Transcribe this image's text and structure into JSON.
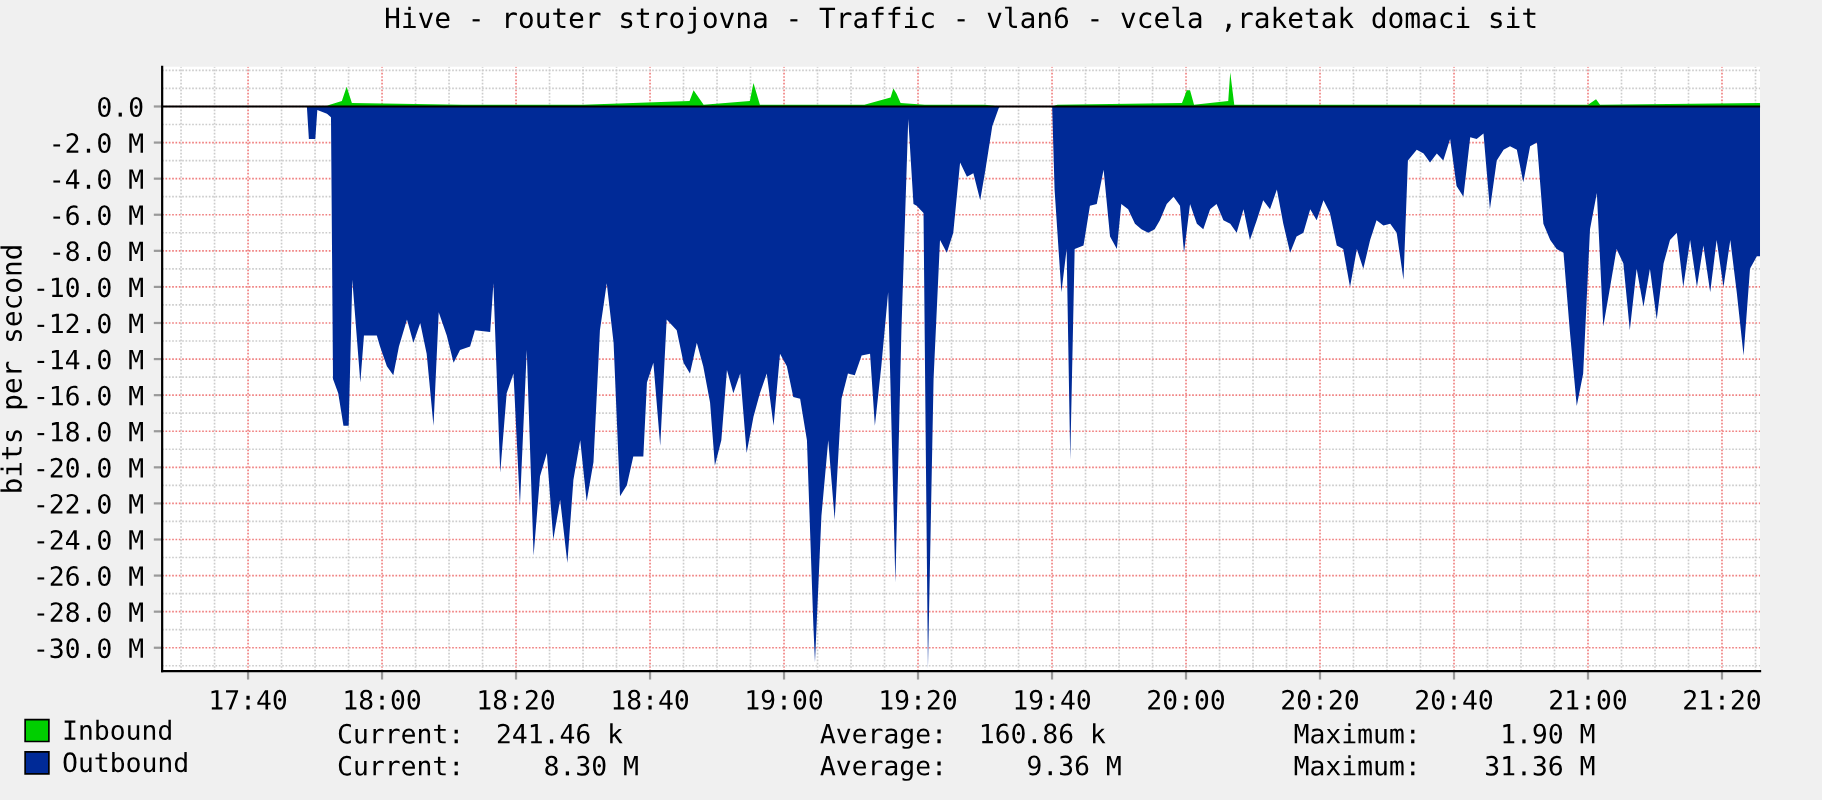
{
  "chart_data": {
    "type": "area",
    "title": "Hive - router strojovna - Traffic - vlan6 - vcela ,raketak domaci sit",
    "ylabel": "bits per second",
    "xlim": [
      17.453,
      21.428
    ],
    "xticks": [
      {
        "value": 17.6667,
        "label": "17:40"
      },
      {
        "value": 18.0,
        "label": "18:00"
      },
      {
        "value": 18.3333,
        "label": "18:20"
      },
      {
        "value": 18.6667,
        "label": "18:40"
      },
      {
        "value": 19.0,
        "label": "19:00"
      },
      {
        "value": 19.3333,
        "label": "19:20"
      },
      {
        "value": 19.6667,
        "label": "19:40"
      },
      {
        "value": 20.0,
        "label": "20:00"
      },
      {
        "value": 20.3333,
        "label": "20:20"
      },
      {
        "value": 20.6667,
        "label": "20:40"
      },
      {
        "value": 21.0,
        "label": "21:00"
      },
      {
        "value": 21.3333,
        "label": "21:20"
      }
    ],
    "ylim": [
      -31.3,
      2.2
    ],
    "yticks": [
      {
        "value": 0,
        "label": "0.0"
      },
      {
        "value": -2,
        "label": "-2.0 M"
      },
      {
        "value": -4,
        "label": "-4.0 M"
      },
      {
        "value": -6,
        "label": "-6.0 M"
      },
      {
        "value": -8,
        "label": "-8.0 M"
      },
      {
        "value": -10,
        "label": "-10.0 M"
      },
      {
        "value": -12,
        "label": "-12.0 M"
      },
      {
        "value": -14,
        "label": "-14.0 M"
      },
      {
        "value": -16,
        "label": "-16.0 M"
      },
      {
        "value": -18,
        "label": "-18.0 M"
      },
      {
        "value": -20,
        "label": "-20.0 M"
      },
      {
        "value": -22,
        "label": "-22.0 M"
      },
      {
        "value": -24,
        "label": "-24.0 M"
      },
      {
        "value": -26,
        "label": "-26.0 M"
      },
      {
        "value": -28,
        "label": "-28.0 M"
      },
      {
        "value": -30,
        "label": "-30.0 M"
      }
    ],
    "grid": true,
    "legend": "bottom",
    "annotations": [
      "Current:  241.46 k",
      "Average:  160.86 k",
      "Maximum:     1.90 M",
      "Current:     8.30 M",
      "Average:     9.36 M",
      "Maximum:    31.36 M"
    ],
    "series": [
      {
        "name": "Inbound",
        "color": "#00cf00",
        "x": [
          17.453,
          17.86,
          17.87,
          17.9,
          17.912,
          17.925,
          18.2,
          18.5,
          18.765,
          18.775,
          18.8,
          18.915,
          18.924,
          18.94,
          19.2,
          19.265,
          19.272,
          19.28,
          19.29,
          19.35,
          19.5,
          19.537,
          19.667,
          19.68,
          19.99,
          20.002,
          20.01,
          20.02,
          20.105,
          20.11,
          20.12,
          20.5,
          21.0,
          21.02,
          21.03,
          21.428
        ],
        "values": [
          0,
          0,
          0.1,
          0.3,
          1.1,
          0.2,
          0.1,
          0.1,
          0.3,
          0.9,
          0.1,
          0.3,
          1.3,
          0.1,
          0.1,
          0.5,
          1.0,
          0.7,
          0.2,
          0.1,
          0.1,
          0,
          0,
          0.1,
          0.2,
          0.9,
          0.9,
          0.1,
          0.3,
          1.9,
          0.1,
          0.1,
          0.1,
          0.4,
          0.1,
          0.2
        ]
      },
      {
        "name": "Outbound",
        "color": "#002a97",
        "x": [
          17.453,
          17.813,
          17.818,
          17.834,
          17.839,
          17.863,
          17.873,
          17.878,
          17.891,
          17.904,
          17.917,
          17.926,
          17.946,
          17.955,
          17.987,
          17.995,
          18.012,
          18.028,
          18.042,
          18.062,
          18.078,
          18.095,
          18.111,
          18.128,
          18.141,
          18.161,
          18.178,
          18.194,
          18.219,
          18.231,
          18.269,
          18.277,
          18.294,
          18.31,
          18.327,
          18.343,
          18.36,
          18.377,
          18.393,
          18.41,
          18.426,
          18.443,
          18.461,
          18.476,
          18.493,
          18.509,
          18.526,
          18.542,
          18.559,
          18.576,
          18.592,
          18.609,
          18.625,
          18.65,
          18.659,
          18.675,
          18.692,
          18.708,
          18.733,
          18.75,
          18.766,
          18.783,
          18.799,
          18.816,
          18.828,
          18.844,
          18.858,
          18.874,
          18.891,
          18.907,
          18.924,
          18.94,
          18.957,
          18.974,
          18.99,
          19.007,
          19.023,
          19.04,
          19.057,
          19.073,
          19.077,
          19.093,
          19.11,
          19.126,
          19.143,
          19.159,
          19.176,
          19.193,
          19.214,
          19.226,
          19.242,
          19.259,
          19.277,
          19.292,
          19.309,
          19.322,
          19.33,
          19.347,
          19.358,
          19.372,
          19.388,
          19.405,
          19.421,
          19.438,
          19.455,
          19.471,
          19.488,
          19.501,
          19.518,
          19.534,
          19.537,
          19.667,
          19.673,
          19.69,
          19.703,
          19.712,
          19.723,
          19.745,
          19.761,
          19.778,
          19.795,
          19.811,
          19.828,
          19.839,
          19.856,
          19.873,
          19.889,
          19.906,
          19.922,
          19.935,
          19.952,
          19.969,
          19.985,
          19.995,
          20.01,
          20.027,
          20.043,
          20.06,
          20.076,
          20.093,
          20.11,
          20.126,
          20.143,
          20.159,
          20.176,
          20.192,
          20.209,
          20.226,
          20.242,
          20.259,
          20.275,
          20.292,
          20.309,
          20.325,
          20.342,
          20.358,
          20.375,
          20.391,
          20.408,
          20.425,
          20.441,
          20.458,
          20.474,
          20.491,
          20.508,
          20.524,
          20.541,
          20.552,
          20.574,
          20.591,
          20.607,
          20.624,
          20.64,
          20.657,
          20.673,
          20.69,
          20.707,
          20.723,
          20.74,
          20.756,
          20.773,
          20.79,
          20.806,
          20.823,
          20.839,
          20.856,
          20.873,
          20.889,
          20.906,
          20.922,
          20.939,
          20.955,
          20.972,
          20.988,
          21.005,
          21.022,
          21.038,
          21.055,
          21.071,
          21.088,
          21.104,
          21.121,
          21.138,
          21.154,
          21.171,
          21.188,
          21.204,
          21.221,
          21.237,
          21.254,
          21.271,
          21.287,
          21.304,
          21.32,
          21.337,
          21.354,
          21.37,
          21.387,
          21.403,
          21.42,
          21.428
        ],
        "values": [
          0,
          0,
          -1.8,
          -1.8,
          -0.2,
          -0.4,
          -0.6,
          -15.1,
          -15.9,
          -17.7,
          -17.7,
          -9.6,
          -15.3,
          -12.7,
          -12.7,
          -13.3,
          -14.4,
          -14.9,
          -13.3,
          -11.8,
          -13.1,
          -12.0,
          -13.7,
          -17.7,
          -11.4,
          -12.7,
          -14.2,
          -13.5,
          -13.3,
          -12.4,
          -12.5,
          -9.8,
          -20.3,
          -15.9,
          -14.8,
          -22.1,
          -13.5,
          -24.9,
          -20.5,
          -19.2,
          -24.0,
          -21.8,
          -25.3,
          -20.7,
          -18.5,
          -21.9,
          -19.7,
          -12.4,
          -9.8,
          -13.1,
          -21.6,
          -21.0,
          -19.4,
          -19.4,
          -15.3,
          -14.2,
          -18.8,
          -11.8,
          -12.4,
          -14.2,
          -14.8,
          -13.1,
          -14.4,
          -16.4,
          -19.9,
          -18.5,
          -14.6,
          -15.9,
          -14.8,
          -19.2,
          -17.2,
          -15.9,
          -14.8,
          -17.7,
          -13.7,
          -14.4,
          -16.1,
          -16.2,
          -18.5,
          -28.8,
          -30.8,
          -22.7,
          -18.5,
          -22.9,
          -16.2,
          -14.8,
          -14.9,
          -13.8,
          -13.7,
          -17.7,
          -14.4,
          -10.3,
          -26.4,
          -12.4,
          -0.7,
          -5.4,
          -5.5,
          -5.9,
          -31.2,
          -15.1,
          -7.4,
          -8.1,
          -7.0,
          -3.1,
          -3.9,
          -3.7,
          -5.2,
          -3.5,
          -1.1,
          -0.1,
          0,
          0,
          -4.6,
          -10.3,
          -7.9,
          -19.6,
          -7.9,
          -7.7,
          -5.5,
          -5.4,
          -3.5,
          -7.2,
          -7.9,
          -5.4,
          -5.7,
          -6.5,
          -6.8,
          -7.0,
          -6.8,
          -6.3,
          -5.4,
          -5.0,
          -5.5,
          -8.1,
          -5.4,
          -6.5,
          -6.8,
          -5.7,
          -5.4,
          -6.3,
          -6.5,
          -7.0,
          -5.7,
          -7.4,
          -6.3,
          -5.2,
          -5.7,
          -4.6,
          -6.5,
          -8.1,
          -7.2,
          -7.0,
          -5.7,
          -6.3,
          -5.2,
          -5.9,
          -7.7,
          -7.9,
          -10.0,
          -7.9,
          -9.0,
          -7.4,
          -6.3,
          -6.6,
          -6.5,
          -7.0,
          -9.6,
          -3.0,
          -2.4,
          -2.6,
          -3.1,
          -2.6,
          -3.0,
          -1.8,
          -4.4,
          -5.0,
          -1.7,
          -1.8,
          -1.5,
          -5.7,
          -3.0,
          -2.4,
          -2.2,
          -2.4,
          -4.2,
          -2.2,
          -2.0,
          -6.5,
          -7.4,
          -7.9,
          -8.1,
          -12.5,
          -16.6,
          -14.8,
          -6.8,
          -4.8,
          -12.2,
          -10.0,
          -7.9,
          -8.7,
          -12.4,
          -9.0,
          -11.1,
          -9.0,
          -11.8,
          -8.7,
          -7.4,
          -7.0,
          -10.0,
          -7.4,
          -10.0,
          -7.7,
          -10.3,
          -7.4,
          -10.0,
          -7.4,
          -10.3,
          -13.8,
          -9.0,
          -8.3,
          -8.3
        ]
      }
    ]
  }
}
